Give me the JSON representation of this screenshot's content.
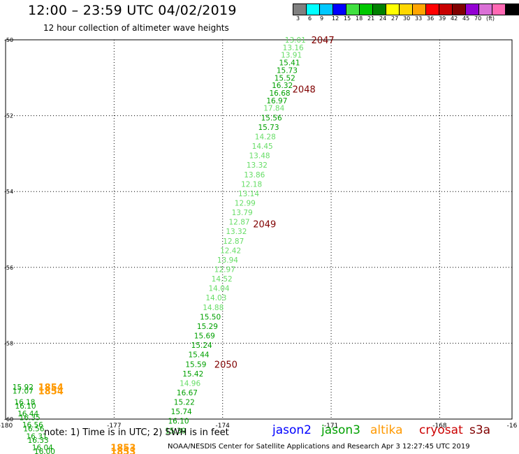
{
  "header": {
    "title": "12:00 – 23:59 UTC 04/02/2019",
    "subtitle": "12 hour collection of altimeter wave heights"
  },
  "legend": {
    "colors": [
      "#808080",
      "#00ffff",
      "#00c8ff",
      "#0000ff",
      "#40e040",
      "#00c800",
      "#008000",
      "#ffff00",
      "#ffd700",
      "#ffa500",
      "#ff0000",
      "#c80000",
      "#800000",
      "#9400d3",
      "#da70d6",
      "#ff69b4",
      "#000000"
    ],
    "labels": [
      "3",
      "6",
      "9",
      "12",
      "15",
      "18",
      "21",
      "24",
      "27",
      "30",
      "33",
      "36",
      "39",
      "42",
      "45",
      "70",
      "(ft)"
    ]
  },
  "axes": {
    "x_ticks": [
      "-180",
      "-177",
      "-174",
      "-171",
      "-168",
      "-16"
    ],
    "y_ticks": [
      "-50",
      "-52",
      "-54",
      "-56",
      "-58",
      "-60"
    ],
    "grid": true
  },
  "track_colors": {
    "light": "#66dd66",
    "mid": "#33bb33",
    "dark": "#00a000",
    "altika": "#ff9900",
    "time": "#800000"
  },
  "tracks": [
    {
      "name": "jason3-main",
      "color_key": "dark",
      "points": [
        {
          "lon": -171.99,
          "lat": -50.0,
          "v": "13.01",
          "c": "light"
        },
        {
          "lon": -172.05,
          "lat": -50.2,
          "v": "13.16",
          "c": "light"
        },
        {
          "lon": -172.1,
          "lat": -50.4,
          "v": "13.91",
          "c": "light"
        },
        {
          "lon": -172.15,
          "lat": -50.6,
          "v": "15.41",
          "c": "dark"
        },
        {
          "lon": -172.22,
          "lat": -50.8,
          "v": "15.73",
          "c": "dark"
        },
        {
          "lon": -172.28,
          "lat": -51.0,
          "v": "15.52",
          "c": "dark"
        },
        {
          "lon": -172.35,
          "lat": -51.2,
          "v": "16.32",
          "c": "dark"
        },
        {
          "lon": -172.42,
          "lat": -51.4,
          "v": "16.68",
          "c": "dark"
        },
        {
          "lon": -172.5,
          "lat": -51.6,
          "v": "16.97",
          "c": "dark"
        },
        {
          "lon": -172.58,
          "lat": -51.8,
          "v": "17.84",
          "c": "light"
        },
        {
          "lon": -172.65,
          "lat": -52.05,
          "v": "15.56",
          "c": "dark"
        },
        {
          "lon": -172.73,
          "lat": -52.3,
          "v": "15.73",
          "c": "dark"
        },
        {
          "lon": -172.82,
          "lat": -52.55,
          "v": "14.28",
          "c": "light"
        },
        {
          "lon": -172.9,
          "lat": -52.8,
          "v": "14.45",
          "c": "light"
        },
        {
          "lon": -172.98,
          "lat": -53.05,
          "v": "13.48",
          "c": "light"
        },
        {
          "lon": -173.05,
          "lat": -53.3,
          "v": "13.32",
          "c": "light"
        },
        {
          "lon": -173.12,
          "lat": -53.55,
          "v": "13.86",
          "c": "light"
        },
        {
          "lon": -173.2,
          "lat": -53.8,
          "v": "12.18",
          "c": "light"
        },
        {
          "lon": -173.28,
          "lat": -54.05,
          "v": "13.14",
          "c": "light"
        },
        {
          "lon": -173.38,
          "lat": -54.3,
          "v": "12.99",
          "c": "light"
        },
        {
          "lon": -173.46,
          "lat": -54.55,
          "v": "13.79",
          "c": "light"
        },
        {
          "lon": -173.54,
          "lat": -54.8,
          "v": "12.87",
          "c": "light"
        },
        {
          "lon": -173.62,
          "lat": -55.05,
          "v": "13.32",
          "c": "light"
        },
        {
          "lon": -173.7,
          "lat": -55.3,
          "v": "12.87",
          "c": "light"
        },
        {
          "lon": -173.78,
          "lat": -55.55,
          "v": "12.42",
          "c": "light"
        },
        {
          "lon": -173.86,
          "lat": -55.8,
          "v": "13.94",
          "c": "light"
        },
        {
          "lon": -173.94,
          "lat": -56.05,
          "v": "12.97",
          "c": "light"
        },
        {
          "lon": -174.02,
          "lat": -56.3,
          "v": "14.52",
          "c": "light"
        },
        {
          "lon": -174.1,
          "lat": -56.55,
          "v": "14.04",
          "c": "light"
        },
        {
          "lon": -174.18,
          "lat": -56.8,
          "v": "14.03",
          "c": "light"
        },
        {
          "lon": -174.26,
          "lat": -57.05,
          "v": "14.88",
          "c": "light"
        },
        {
          "lon": -174.34,
          "lat": -57.3,
          "v": "15.50",
          "c": "dark"
        },
        {
          "lon": -174.42,
          "lat": -57.55,
          "v": "15.29",
          "c": "dark"
        },
        {
          "lon": -174.5,
          "lat": -57.8,
          "v": "15.69",
          "c": "dark"
        },
        {
          "lon": -174.58,
          "lat": -58.05,
          "v": "15.24",
          "c": "dark"
        },
        {
          "lon": -174.66,
          "lat": -58.3,
          "v": "15.44",
          "c": "dark"
        },
        {
          "lon": -174.74,
          "lat": -58.55,
          "v": "15.59",
          "c": "dark"
        },
        {
          "lon": -174.82,
          "lat": -58.8,
          "v": "15.42",
          "c": "dark"
        },
        {
          "lon": -174.9,
          "lat": -59.05,
          "v": "14.96",
          "c": "light"
        },
        {
          "lon": -174.98,
          "lat": -59.3,
          "v": "16.67",
          "c": "dark"
        },
        {
          "lon": -175.06,
          "lat": -59.55,
          "v": "15.22",
          "c": "dark"
        },
        {
          "lon": -175.14,
          "lat": -59.8,
          "v": "15.74",
          "c": "dark"
        },
        {
          "lon": -175.22,
          "lat": -60.05,
          "v": "16.10",
          "c": "dark"
        },
        {
          "lon": -175.3,
          "lat": -60.3,
          "v": "15.39",
          "c": "dark"
        }
      ]
    },
    {
      "name": "jason3-left",
      "color_key": "dark",
      "points": [
        {
          "lon": -179.52,
          "lat": -59.15,
          "v": "15.92",
          "c": "dark"
        },
        {
          "lon": -179.52,
          "lat": -59.25,
          "v": "17.07",
          "c": "dark"
        },
        {
          "lon": -179.47,
          "lat": -59.55,
          "v": "16.18",
          "c": "dark"
        },
        {
          "lon": -179.45,
          "lat": -59.65,
          "v": "16.10",
          "c": "dark"
        },
        {
          "lon": -179.38,
          "lat": -59.85,
          "v": "16.44",
          "c": "dark"
        },
        {
          "lon": -179.33,
          "lat": -59.95,
          "v": "16.35",
          "c": "dark"
        },
        {
          "lon": -179.25,
          "lat": -60.15,
          "v": "16.56",
          "c": "dark"
        },
        {
          "lon": -179.22,
          "lat": -60.25,
          "v": "16.56",
          "c": "dark"
        },
        {
          "lon": -179.14,
          "lat": -60.45,
          "v": "16.31",
          "c": "dark"
        },
        {
          "lon": -179.1,
          "lat": -60.55,
          "v": "16.33",
          "c": "dark"
        },
        {
          "lon": -178.98,
          "lat": -60.75,
          "v": "16.04",
          "c": "dark"
        },
        {
          "lon": -178.92,
          "lat": -60.85,
          "v": "16.00",
          "c": "dark"
        }
      ]
    }
  ],
  "altika_labels": [
    {
      "lon": -178.75,
      "lat": -59.15,
      "v": "1854"
    },
    {
      "lon": -178.75,
      "lat": -59.25,
      "v": "1854"
    },
    {
      "lon": -176.75,
      "lat": -60.75,
      "v": "1853"
    },
    {
      "lon": -176.75,
      "lat": -60.85,
      "v": "1853"
    }
  ],
  "time_labels": [
    {
      "lon": -171.55,
      "lat": -50.0,
      "v": "2047"
    },
    {
      "lon": -172.07,
      "lat": -51.3,
      "v": "2048"
    },
    {
      "lon": -173.16,
      "lat": -54.85,
      "v": "2049"
    },
    {
      "lon": -174.23,
      "lat": -58.55,
      "v": "2050"
    }
  ],
  "footer": {
    "note": "note:  1) Time is in UTC;  2) SWH is in feet",
    "credit": "NOAA/NESDIS Center for Satellite Applications and Research    Apr  3 12:27:45 UTC 2019",
    "satellites": [
      {
        "name": "jason2",
        "color": "#0000ff"
      },
      {
        "name": "jason3",
        "color": "#00a000"
      },
      {
        "name": "altika",
        "color": "#ff9900"
      },
      {
        "name": "cryosat",
        "color": "#cc0000"
      },
      {
        "name": "s3a",
        "color": "#800000"
      }
    ]
  }
}
